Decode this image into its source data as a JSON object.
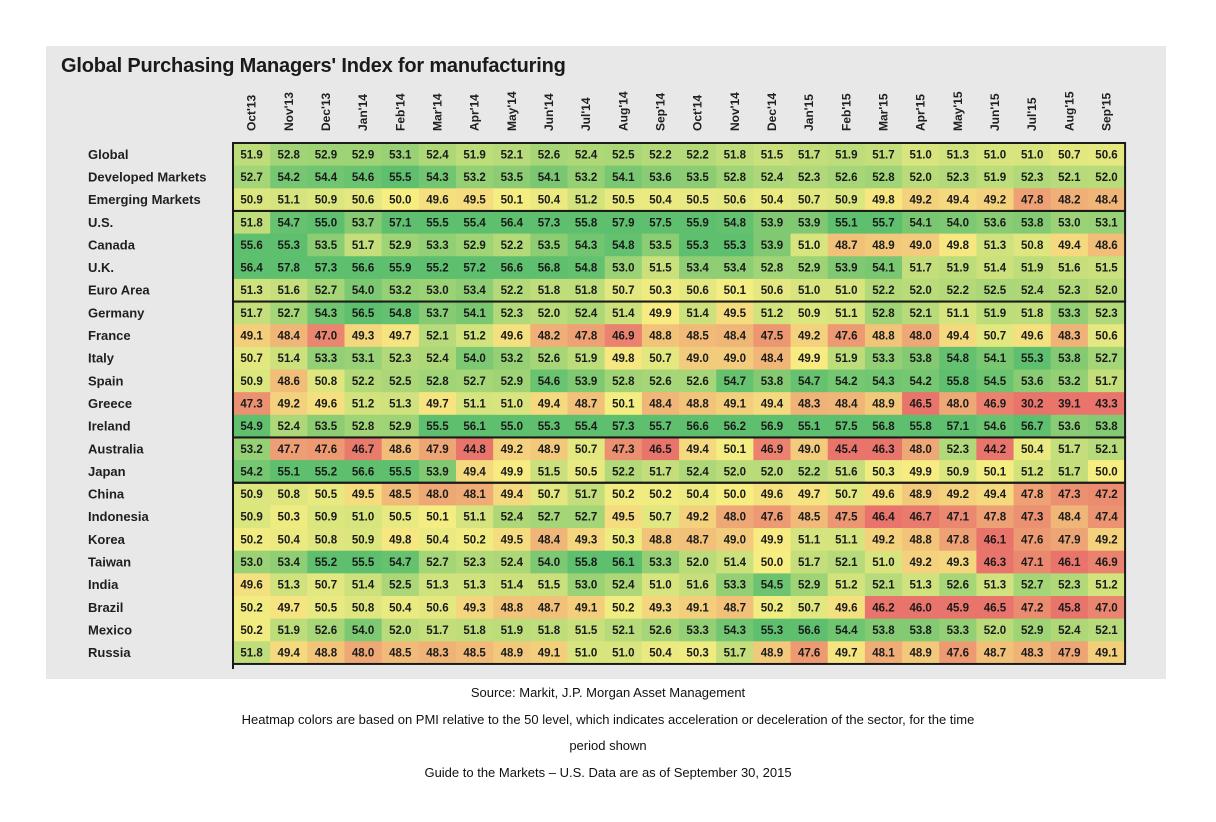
{
  "chart_data": {
    "type": "heatmap",
    "title": "Global Purchasing Managers' Index for manufacturing",
    "columns": [
      "Oct'13",
      "Nov'13",
      "Dec'13",
      "Jan'14",
      "Feb'14",
      "Mar'14",
      "Apr'14",
      "May'14",
      "Jun'14",
      "Jul'14",
      "Aug'14",
      "Sep'14",
      "Oct'14",
      "Nov'14",
      "Dec'14",
      "Jan'15",
      "Feb'15",
      "Mar'15",
      "Apr'15",
      "May'15",
      "Jun'15",
      "Jul'15",
      "Aug'15",
      "Sep'15"
    ],
    "rows": [
      {
        "name": "Global",
        "values": [
          51.9,
          52.8,
          52.9,
          52.9,
          53.1,
          52.4,
          51.9,
          52.1,
          52.6,
          52.4,
          52.5,
          52.2,
          52.2,
          51.8,
          51.5,
          51.7,
          51.9,
          51.7,
          51.0,
          51.3,
          51.0,
          51.0,
          50.7,
          50.6
        ]
      },
      {
        "name": "Developed Markets",
        "values": [
          52.7,
          54.2,
          54.4,
          54.6,
          55.5,
          54.3,
          53.2,
          53.5,
          54.1,
          53.2,
          54.1,
          53.6,
          53.5,
          52.8,
          52.4,
          52.3,
          52.6,
          52.8,
          52.0,
          52.3,
          51.9,
          52.3,
          52.1,
          52.0
        ]
      },
      {
        "name": "Emerging Markets",
        "values": [
          50.9,
          51.1,
          50.9,
          50.6,
          50.0,
          49.6,
          49.5,
          50.1,
          50.4,
          51.2,
          50.5,
          50.4,
          50.5,
          50.6,
          50.4,
          50.7,
          50.9,
          49.8,
          49.2,
          49.4,
          49.2,
          47.8,
          48.2,
          48.4
        ]
      },
      {
        "name": "U.S.",
        "values": [
          51.8,
          54.7,
          55.0,
          53.7,
          57.1,
          55.5,
          55.4,
          56.4,
          57.3,
          55.8,
          57.9,
          57.5,
          55.9,
          54.8,
          53.9,
          53.9,
          55.1,
          55.7,
          54.1,
          54.0,
          53.6,
          53.8,
          53.0,
          53.1
        ]
      },
      {
        "name": "Canada",
        "values": [
          55.6,
          55.3,
          53.5,
          51.7,
          52.9,
          53.3,
          52.9,
          52.2,
          53.5,
          54.3,
          54.8,
          53.5,
          55.3,
          55.3,
          53.9,
          51.0,
          48.7,
          48.9,
          49.0,
          49.8,
          51.3,
          50.8,
          49.4,
          48.6
        ]
      },
      {
        "name": "U.K.",
        "values": [
          56.4,
          57.8,
          57.3,
          56.6,
          55.9,
          55.2,
          57.2,
          56.6,
          56.8,
          54.8,
          53.0,
          51.5,
          53.4,
          53.4,
          52.8,
          52.9,
          53.9,
          54.1,
          51.7,
          51.9,
          51.4,
          51.9,
          51.6,
          51.5
        ]
      },
      {
        "name": "Euro Area",
        "values": [
          51.3,
          51.6,
          52.7,
          54.0,
          53.2,
          53.0,
          53.4,
          52.2,
          51.8,
          51.8,
          50.7,
          50.3,
          50.6,
          50.1,
          50.6,
          51.0,
          51.0,
          52.2,
          52.0,
          52.2,
          52.5,
          52.4,
          52.3,
          52.0
        ]
      },
      {
        "name": "Germany",
        "values": [
          51.7,
          52.7,
          54.3,
          56.5,
          54.8,
          53.7,
          54.1,
          52.3,
          52.0,
          52.4,
          51.4,
          49.9,
          51.4,
          49.5,
          51.2,
          50.9,
          51.1,
          52.8,
          52.1,
          51.1,
          51.9,
          51.8,
          53.3,
          52.3
        ]
      },
      {
        "name": "France",
        "values": [
          49.1,
          48.4,
          47.0,
          49.3,
          49.7,
          52.1,
          51.2,
          49.6,
          48.2,
          47.8,
          46.9,
          48.8,
          48.5,
          48.4,
          47.5,
          49.2,
          47.6,
          48.8,
          48.0,
          49.4,
          50.7,
          49.6,
          48.3,
          50.6
        ]
      },
      {
        "name": "Italy",
        "values": [
          50.7,
          51.4,
          53.3,
          53.1,
          52.3,
          52.4,
          54.0,
          53.2,
          52.6,
          51.9,
          49.8,
          50.7,
          49.0,
          49.0,
          48.4,
          49.9,
          51.9,
          53.3,
          53.8,
          54.8,
          54.1,
          55.3,
          53.8,
          52.7
        ]
      },
      {
        "name": "Spain",
        "values": [
          50.9,
          48.6,
          50.8,
          52.2,
          52.5,
          52.8,
          52.7,
          52.9,
          54.6,
          53.9,
          52.8,
          52.6,
          52.6,
          54.7,
          53.8,
          54.7,
          54.2,
          54.3,
          54.2,
          55.8,
          54.5,
          53.6,
          53.2,
          51.7
        ]
      },
      {
        "name": "Greece",
        "values": [
          47.3,
          49.2,
          49.6,
          51.2,
          51.3,
          49.7,
          51.1,
          51.0,
          49.4,
          48.7,
          50.1,
          48.4,
          48.8,
          49.1,
          49.4,
          48.3,
          48.4,
          48.9,
          46.5,
          48.0,
          46.9,
          30.2,
          39.1,
          43.3
        ]
      },
      {
        "name": "Ireland",
        "values": [
          54.9,
          52.4,
          53.5,
          52.8,
          52.9,
          55.5,
          56.1,
          55.0,
          55.3,
          55.4,
          57.3,
          55.7,
          56.6,
          56.2,
          56.9,
          55.1,
          57.5,
          56.8,
          55.8,
          57.1,
          54.6,
          56.7,
          53.6,
          53.8
        ]
      },
      {
        "name": "Australia",
        "values": [
          53.2,
          47.7,
          47.6,
          46.7,
          48.6,
          47.9,
          44.8,
          49.2,
          48.9,
          50.7,
          47.3,
          46.5,
          49.4,
          50.1,
          46.9,
          49.0,
          45.4,
          46.3,
          48.0,
          52.3,
          44.2,
          50.4,
          51.7,
          52.1
        ]
      },
      {
        "name": "Japan",
        "values": [
          54.2,
          55.1,
          55.2,
          56.6,
          55.5,
          53.9,
          49.4,
          49.9,
          51.5,
          50.5,
          52.2,
          51.7,
          52.4,
          52.0,
          52.0,
          52.2,
          51.6,
          50.3,
          49.9,
          50.9,
          50.1,
          51.2,
          51.7,
          50.0
        ]
      },
      {
        "name": "China",
        "values": [
          50.9,
          50.8,
          50.5,
          49.5,
          48.5,
          48.0,
          48.1,
          49.4,
          50.7,
          51.7,
          50.2,
          50.2,
          50.4,
          50.0,
          49.6,
          49.7,
          50.7,
          49.6,
          48.9,
          49.2,
          49.4,
          47.8,
          47.3,
          47.2
        ]
      },
      {
        "name": "Indonesia",
        "values": [
          50.9,
          50.3,
          50.9,
          51.0,
          50.5,
          50.1,
          51.1,
          52.4,
          52.7,
          52.7,
          49.5,
          50.7,
          49.2,
          48.0,
          47.6,
          48.5,
          47.5,
          46.4,
          46.7,
          47.1,
          47.8,
          47.3,
          48.4,
          47.4
        ]
      },
      {
        "name": "Korea",
        "values": [
          50.2,
          50.4,
          50.8,
          50.9,
          49.8,
          50.4,
          50.2,
          49.5,
          48.4,
          49.3,
          50.3,
          48.8,
          48.7,
          49.0,
          49.9,
          51.1,
          51.1,
          49.2,
          48.8,
          47.8,
          46.1,
          47.6,
          47.9,
          49.2
        ]
      },
      {
        "name": "Taiwan",
        "values": [
          53.0,
          53.4,
          55.2,
          55.5,
          54.7,
          52.7,
          52.3,
          52.4,
          54.0,
          55.8,
          56.1,
          53.3,
          52.0,
          51.4,
          50.0,
          51.7,
          52.1,
          51.0,
          49.2,
          49.3,
          46.3,
          47.1,
          46.1,
          46.9
        ]
      },
      {
        "name": "India",
        "values": [
          49.6,
          51.3,
          50.7,
          51.4,
          52.5,
          51.3,
          51.3,
          51.4,
          51.5,
          53.0,
          52.4,
          51.0,
          51.6,
          53.3,
          54.5,
          52.9,
          51.2,
          52.1,
          51.3,
          52.6,
          51.3,
          52.7,
          52.3,
          51.2
        ]
      },
      {
        "name": "Brazil",
        "values": [
          50.2,
          49.7,
          50.5,
          50.8,
          50.4,
          50.6,
          49.3,
          48.8,
          48.7,
          49.1,
          50.2,
          49.3,
          49.1,
          48.7,
          50.2,
          50.7,
          49.6,
          46.2,
          46.0,
          45.9,
          46.5,
          47.2,
          45.8,
          47.0
        ]
      },
      {
        "name": "Mexico",
        "values": [
          50.2,
          51.9,
          52.6,
          54.0,
          52.0,
          51.7,
          51.8,
          51.9,
          51.8,
          51.5,
          52.1,
          52.6,
          53.3,
          54.3,
          55.3,
          56.6,
          54.4,
          53.8,
          53.8,
          53.3,
          52.0,
          52.9,
          52.4,
          52.1
        ]
      },
      {
        "name": "Russia",
        "values": [
          51.8,
          49.4,
          48.8,
          48.0,
          48.5,
          48.3,
          48.5,
          48.9,
          49.1,
          51.0,
          51.0,
          50.4,
          50.3,
          51.7,
          48.9,
          47.6,
          49.7,
          48.1,
          48.9,
          47.6,
          48.7,
          48.3,
          47.9,
          49.1
        ]
      }
    ],
    "groups": [
      [
        0,
        2
      ],
      [
        3,
        6
      ],
      [
        7,
        12
      ],
      [
        13,
        14
      ],
      [
        15,
        22
      ]
    ],
    "midpoint": 50,
    "colors": {
      "low": "#e8746c",
      "mid": "#f7ee82",
      "high": "#5ebf6e"
    }
  },
  "footer": {
    "source": "Source: Markit, J.P. Morgan Asset Management",
    "note_line1": "Heatmap colors are based on PMI relative to the 50 level, which indicates acceleration or deceleration of the sector, for the time",
    "note_line2": "period shown",
    "guide": "Guide to the Markets – U.S. Data are as of September 30, 2015"
  }
}
